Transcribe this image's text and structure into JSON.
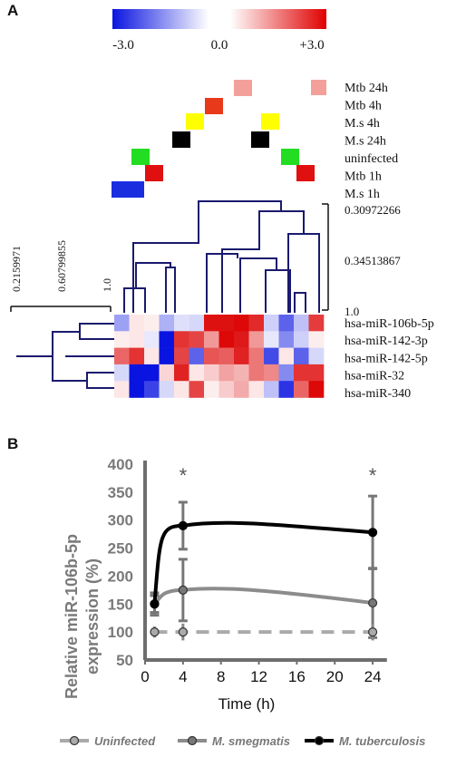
{
  "panel_a": {
    "label": "A",
    "colorbar": {
      "min_label": "-3.0",
      "mid_label": "0.0",
      "max_label": "+3.0",
      "low_color": "#0a14e0",
      "mid_color": "#ffffff",
      "high_color": "#e00000"
    },
    "conditions": [
      {
        "label": "Mtb 24h",
        "color": "#f4a09a"
      },
      {
        "label": "Mtb  4h",
        "color": "#e83a1a"
      },
      {
        "label": "M.s  4h",
        "color": "#ffff00"
      },
      {
        "label": "M.s  24h",
        "color": "#000000"
      },
      {
        "label": "uninfected",
        "color": "#22dd22"
      },
      {
        "label": "Mtb 1h",
        "color": "#e01010"
      },
      {
        "label": "M.s  1h",
        "color": "#1a2ee0"
      }
    ],
    "column_scale_ticks": [
      "0.30972266",
      "0.34513867",
      "1.0"
    ],
    "row_scale_ticks": [
      "0.2159971",
      "0.60799855",
      "1.0"
    ],
    "mirnas": [
      "hsa-miR-106b-5p",
      "hsa-miR-142-3p",
      "hsa-miR-142-5p",
      "hsa-miR-32",
      "hsa-miR-340"
    ],
    "heatmap_values": [
      [
        -1.2,
        0.3,
        0.2,
        -1.0,
        -0.4,
        -0.5,
        2.8,
        2.8,
        2.9,
        2.5,
        -0.6,
        -2.0,
        -0.8,
        2.3
      ],
      [
        0.2,
        0.3,
        -0.3,
        -3.0,
        2.4,
        2.2,
        1.2,
        2.9,
        2.7,
        1.2,
        -0.3,
        -1.5,
        -0.6,
        0.2
      ],
      [
        1.8,
        2.4,
        0.3,
        -3.0,
        2.2,
        -2.0,
        2.0,
        1.9,
        2.6,
        1.6,
        -2.3,
        0.3,
        -2.0,
        -0.5
      ],
      [
        -0.5,
        -3.0,
        -3.0,
        0.5,
        2.6,
        0.3,
        0.6,
        1.1,
        0.9,
        1.6,
        1.4,
        -1.5,
        2.4,
        2.4
      ],
      [
        0.3,
        -3.0,
        -2.4,
        -0.5,
        0.3,
        2.2,
        0.2,
        0.6,
        1.0,
        0.3,
        -0.8,
        -2.6,
        1.8,
        2.9
      ]
    ]
  },
  "panel_b": {
    "label": "B",
    "chart_data": {
      "type": "line",
      "x": [
        1,
        4,
        24
      ],
      "xticks": [
        0,
        4,
        8,
        12,
        16,
        20,
        24
      ],
      "yticks": [
        50,
        100,
        150,
        200,
        250,
        300,
        350,
        400
      ],
      "xlim": [
        0,
        26
      ],
      "ylim": [
        50,
        400
      ],
      "xlabel": "Time (h)",
      "ylabel_line1": "Relative miR-106b-5p",
      "ylabel_line2": "expression  (%)",
      "series": [
        {
          "name": "Uninfected",
          "values": [
            100,
            100,
            100
          ],
          "err": [
            10,
            15,
            15
          ],
          "color": "#aaaaaa",
          "dashed": true,
          "marker_fill": "#aaaaaa"
        },
        {
          "name": "M. smegmatis",
          "values": [
            150,
            175,
            152
          ],
          "err": [
            20,
            55,
            62
          ],
          "color": "#8c8c8c",
          "dashed": false,
          "marker_fill": "#777777"
        },
        {
          "name": "M. tuberculosis",
          "values": [
            150,
            290,
            278
          ],
          "err": [
            15,
            42,
            65
          ],
          "color": "#000000",
          "dashed": false,
          "marker_fill": "#000000"
        }
      ],
      "annotations": [
        {
          "x": 4,
          "text": "*"
        },
        {
          "x": 24,
          "text": "*"
        }
      ],
      "legend_position": "bottom"
    }
  }
}
